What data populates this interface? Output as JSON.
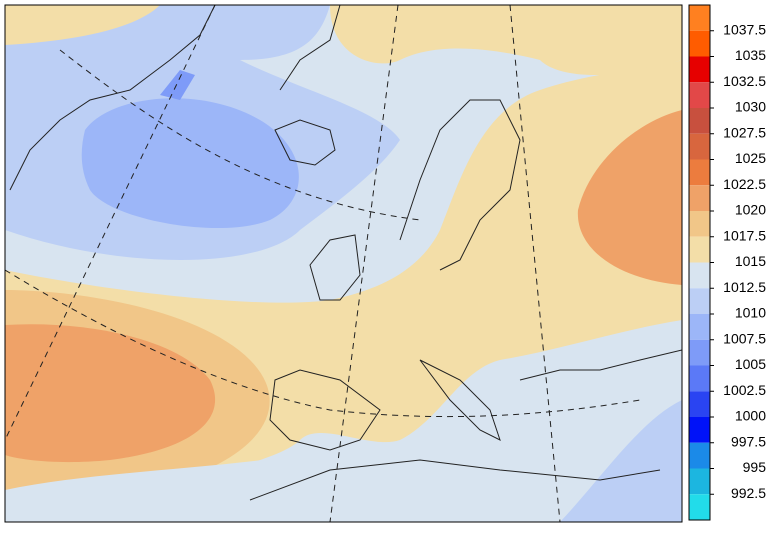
{
  "legend": {
    "levels": [
      1037.5,
      1035,
      1032.5,
      1030,
      1027.5,
      1025,
      1022.5,
      1020,
      1017.5,
      1015,
      1012.5,
      1010,
      1007.5,
      1005,
      1002.5,
      1000,
      997.5,
      995,
      992.5
    ],
    "colors": [
      "#ff8020",
      "#ff5c00",
      "#e60000",
      "#e24848",
      "#c8503e",
      "#d8663e",
      "#ec7c3e",
      "#efa268",
      "#f1c688",
      "#f3dea8",
      "#d8e4f0",
      "#bccff5",
      "#9cb6f8",
      "#7e9bf8",
      "#5b79f7",
      "#2a44f2",
      "#0012f8",
      "#1b8ae8",
      "#1cb6e0",
      "#22dcea"
    ]
  }
}
